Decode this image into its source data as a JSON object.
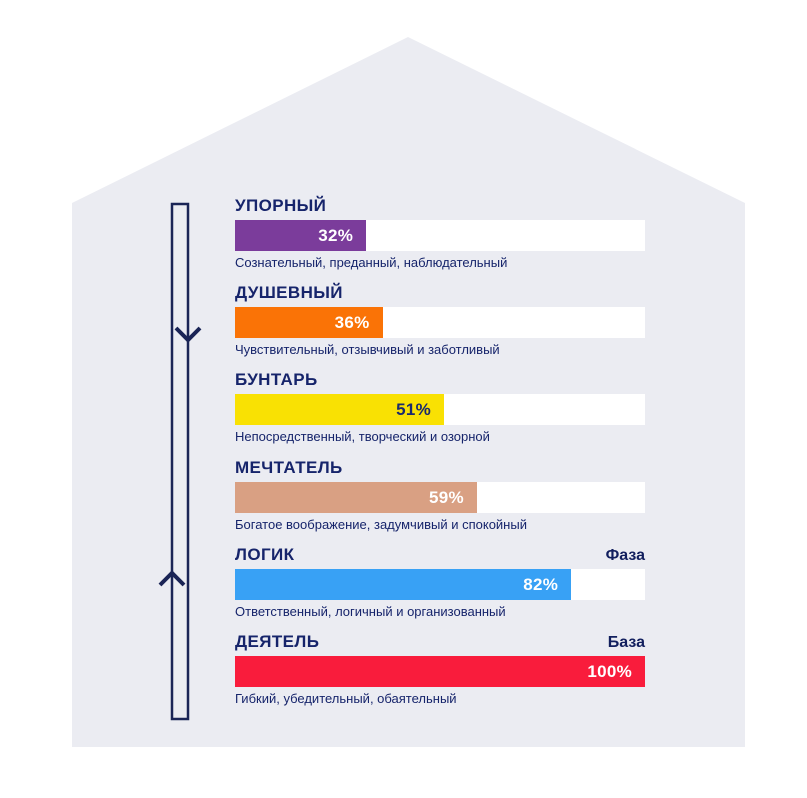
{
  "theme": {
    "page_background": "#FFFFFF",
    "house_fill": "#EBECF2",
    "navy": "#1A2456",
    "track_fill": "#FFFFFF",
    "text_navy": "#16246B"
  },
  "bars": [
    {
      "title": "УПОРНЫЙ",
      "value": 32,
      "percent": "32%",
      "description": "Сознательный, преданный, наблюдательный",
      "color": "#7B3C9B",
      "percent_color": "#FFFFFF",
      "tag": ""
    },
    {
      "title": "ДУШЕВНЫЙ",
      "value": 36,
      "percent": "36%",
      "description": "Чувствительный, отзывчивый и заботливый",
      "color": "#FA7306",
      "percent_color": "#FFFFFF",
      "tag": ""
    },
    {
      "title": "БУНТАРЬ",
      "value": 51,
      "percent": "51%",
      "description": "Непосредственный, творческий и озорной",
      "color": "#F9E103",
      "percent_color": "#1A2A6E",
      "tag": ""
    },
    {
      "title": "МЕЧТАТЕЛЬ",
      "value": 59,
      "percent": "59%",
      "description": "Богатое воображение, задумчивый и спокойный",
      "color": "#D9A083",
      "percent_color": "#FFFFFF",
      "tag": ""
    },
    {
      "title": "ЛОГИК",
      "value": 82,
      "percent": "82%",
      "description": "Ответственный, логичный и организованный",
      "color": "#38A1F5",
      "percent_color": "#FFFFFF",
      "tag": "Фаза"
    },
    {
      "title": "ДЕЯТЕЛЬ",
      "value": 100,
      "percent": "100%",
      "description": "Гибкий, убедительный, обаятельный",
      "color": "#F91C3C",
      "percent_color": "#FFFFFF",
      "tag": "База"
    }
  ],
  "chart_data": {
    "type": "bar",
    "orientation": "horizontal",
    "title": "",
    "xlabel": "",
    "ylabel": "",
    "xlim": [
      0,
      100
    ],
    "grid": false,
    "legend": false,
    "background_shape": "house",
    "categories": [
      "УПОРНЫЙ",
      "ДУШЕВНЫЙ",
      "БУНТАРЬ",
      "МЕЧТАТЕЛЬ",
      "ЛОГИК",
      "ДЕЯТЕЛЬ"
    ],
    "values": [
      32,
      36,
      51,
      59,
      82,
      100
    ],
    "value_labels": [
      "32%",
      "36%",
      "51%",
      "59%",
      "82%",
      "100%"
    ],
    "bar_colors": [
      "#7B3C9B",
      "#FA7306",
      "#F9E103",
      "#D9A083",
      "#38A1F5",
      "#F91C3C"
    ],
    "category_descriptions": [
      "Сознательный, преданный, наблюдательный",
      "Чувствительный, отзывчивый и заботливый",
      "Непосредственный, творческий и озорной",
      "Богатое воображение, задумчивый и спокойный",
      "Ответственный, логичный и организованный",
      "Гибкий, убедительный, обаятельный"
    ],
    "annotations": [
      {
        "category": "ЛОГИК",
        "label": "Фаза"
      },
      {
        "category": "ДЕЯТЕЛЬ",
        "label": "База"
      }
    ]
  }
}
